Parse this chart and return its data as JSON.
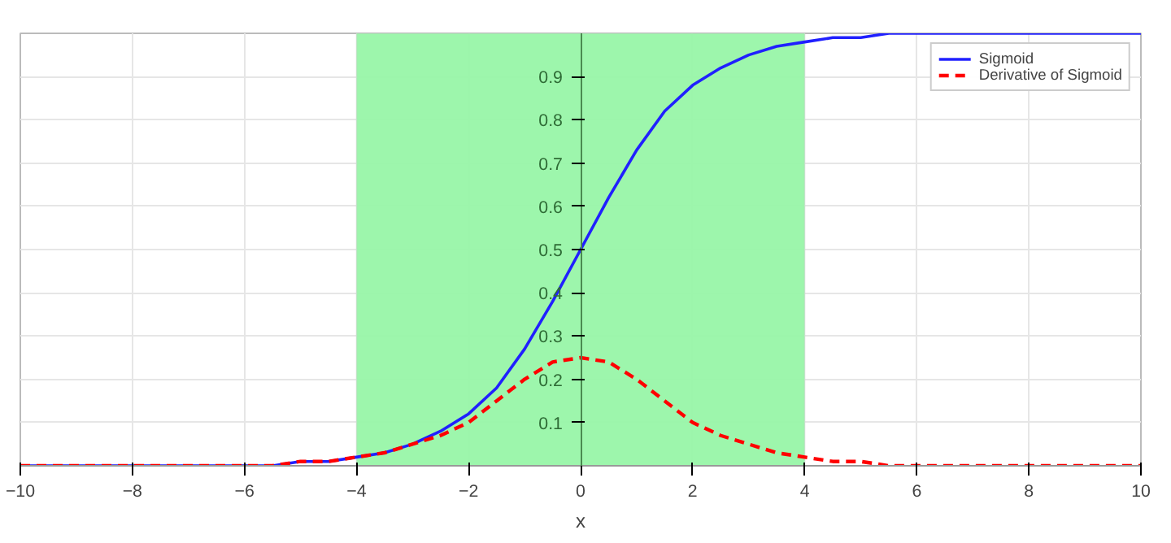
{
  "chart_data": {
    "type": "line",
    "xlabel": "x",
    "x": [
      -10,
      -9.5,
      -9,
      -8.5,
      -8,
      -7.5,
      -7,
      -6.5,
      -6,
      -5.5,
      -5,
      -4.5,
      -4,
      -3.5,
      -3,
      -2.5,
      -2,
      -1.5,
      -1,
      -0.5,
      0,
      0.5,
      1,
      1.5,
      2,
      2.5,
      3,
      3.5,
      4,
      4.5,
      5,
      5.5,
      6,
      6.5,
      7,
      7.5,
      8,
      8.5,
      9,
      9.5,
      10
    ],
    "series": [
      {
        "name": "Sigmoid",
        "color": "#2020ff",
        "line_style": "solid",
        "values": [
          0,
          0,
          0,
          0,
          0,
          0,
          0,
          0,
          0,
          0,
          0.01,
          0.01,
          0.02,
          0.03,
          0.05,
          0.08,
          0.12,
          0.18,
          0.27,
          0.38,
          0.5,
          0.62,
          0.73,
          0.82,
          0.88,
          0.92,
          0.95,
          0.97,
          0.98,
          0.99,
          0.99,
          1,
          1,
          1,
          1,
          1,
          1,
          1,
          1,
          1,
          1
        ]
      },
      {
        "name": "Derivative of Sigmoid",
        "color": "#ff0000",
        "line_style": "dashed",
        "values": [
          0,
          0,
          0,
          0,
          0,
          0,
          0,
          0,
          0,
          0,
          0.01,
          0.01,
          0.02,
          0.03,
          0.05,
          0.07,
          0.1,
          0.15,
          0.2,
          0.24,
          0.25,
          0.24,
          0.2,
          0.15,
          0.1,
          0.07,
          0.05,
          0.03,
          0.02,
          0.01,
          0.01,
          0,
          0,
          0,
          0,
          0,
          0,
          0,
          0,
          0,
          0
        ]
      }
    ],
    "xlim": [
      -10,
      10
    ],
    "ylim": [
      0,
      1
    ],
    "xticks": [
      -10,
      -8,
      -6,
      -4,
      -2,
      0,
      2,
      4,
      6,
      8,
      10
    ],
    "yticks": [
      0.1,
      0.2,
      0.3,
      0.4,
      0.5,
      0.6,
      0.7,
      0.8,
      0.9
    ],
    "bands": [
      {
        "axis": "x",
        "from": -4,
        "to": 4,
        "color": "#98f5a8"
      }
    ],
    "grid": true,
    "legend": "top right"
  }
}
